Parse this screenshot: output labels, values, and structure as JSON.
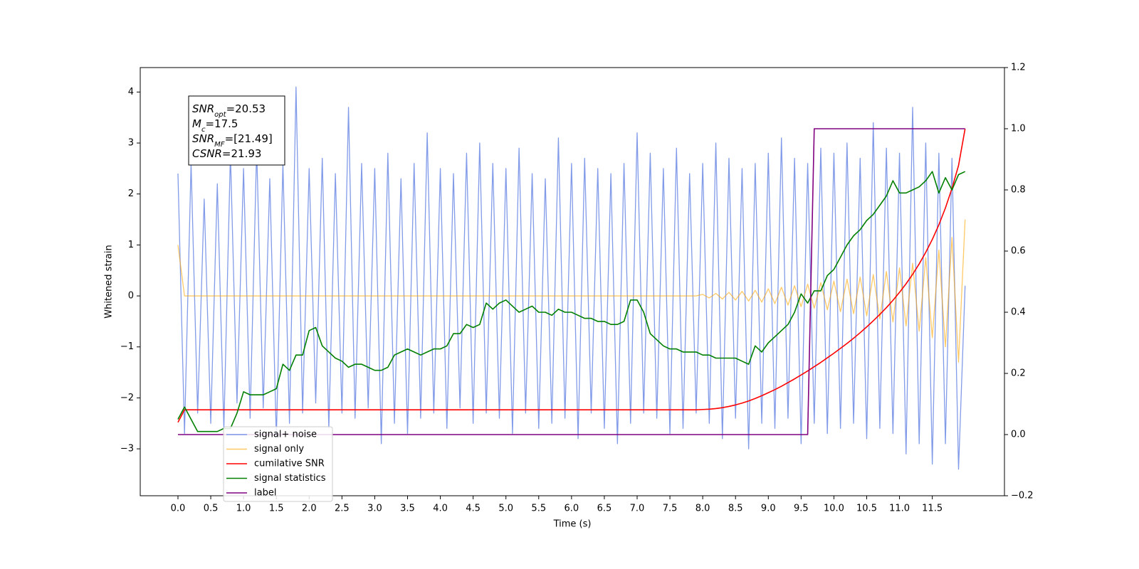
{
  "chart_data": {
    "type": "line",
    "x_label": "Time (s)",
    "y_label": "Whitened strain",
    "xlim": [
      -0.575,
      12.6
    ],
    "ylim": [
      -3.92,
      4.48
    ],
    "y2lim": [
      -0.2,
      1.2
    ],
    "xticks": [
      {
        "value": 0,
        "label": "0.0"
      },
      0.5,
      {
        "value": 1,
        "label": "1.0"
      },
      1.5,
      {
        "value": 2,
        "label": "2.0"
      },
      2.5,
      {
        "value": 3,
        "label": "3.0"
      },
      3.5,
      {
        "value": 4,
        "label": "4.0"
      },
      4.5,
      {
        "value": 5,
        "label": "5.0"
      },
      5.5,
      {
        "value": 6,
        "label": "6.0"
      },
      6.5,
      {
        "value": 7,
        "label": "7.0"
      },
      7.5,
      {
        "value": 8,
        "label": "8.0"
      },
      8.5,
      {
        "value": 9,
        "label": "9.0"
      },
      9.5,
      {
        "value": 10,
        "label": "10.0"
      },
      10.5,
      {
        "value": 11,
        "label": "11.0"
      },
      11.5
    ],
    "yticks": [
      {
        "value": -3,
        "label": "−3"
      },
      {
        "value": -2,
        "label": "−2"
      },
      {
        "value": -1,
        "label": "−1"
      },
      0,
      1,
      2,
      3,
      4
    ],
    "y2ticks": [
      {
        "value": -0.2,
        "label": "−0.2"
      },
      {
        "value": 0,
        "label": "0.0"
      },
      0.2,
      0.4,
      0.6,
      0.8,
      {
        "value": 1,
        "label": "1.0"
      },
      1.2
    ],
    "x": [
      0.0,
      0.1,
      0.2,
      0.3,
      0.4,
      0.5,
      0.6,
      0.7,
      0.8,
      0.9,
      1.0,
      1.1,
      1.2,
      1.3,
      1.4,
      1.5,
      1.6,
      1.7,
      1.8,
      1.9,
      2.0,
      2.1,
      2.2,
      2.3,
      2.4,
      2.5,
      2.6,
      2.7,
      2.8,
      2.9,
      3.0,
      3.1,
      3.2,
      3.3,
      3.4,
      3.5,
      3.6,
      3.7,
      3.8,
      3.9,
      4.0,
      4.1,
      4.2,
      4.3,
      4.4,
      4.5,
      4.6,
      4.7,
      4.8,
      4.9,
      5.0,
      5.1,
      5.2,
      5.3,
      5.4,
      5.5,
      5.6,
      5.7,
      5.8,
      5.9,
      6.0,
      6.1,
      6.2,
      6.3,
      6.4,
      6.5,
      6.6,
      6.7,
      6.8,
      6.9,
      7.0,
      7.1,
      7.2,
      7.3,
      7.4,
      7.5,
      7.6,
      7.7,
      7.8,
      7.9,
      8.0,
      8.1,
      8.2,
      8.3,
      8.4,
      8.5,
      8.6,
      8.7,
      8.8,
      8.9,
      9.0,
      9.1,
      9.2,
      9.3,
      9.4,
      9.5,
      9.6,
      9.7,
      9.8,
      9.9,
      10.0,
      10.1,
      10.2,
      10.3,
      10.4,
      10.5,
      10.6,
      10.7,
      10.8,
      10.9,
      11.0,
      11.1,
      11.2,
      11.3,
      11.4,
      11.5,
      11.6,
      11.7,
      11.8,
      11.9,
      12.0
    ],
    "series": [
      {
        "name": "signal+ noise",
        "color": "#7b96e8",
        "values": [
          2.4,
          -2.7,
          2.6,
          -2.3,
          1.9,
          -2.5,
          2.2,
          -2.6,
          2.8,
          -2.1,
          2.5,
          -2.4,
          2.9,
          -2.2,
          2.3,
          -2.8,
          2.6,
          -2.5,
          4.1,
          -2.3,
          2.5,
          -2.1,
          2.7,
          -2.6,
          2.4,
          -2.3,
          3.7,
          -2.4,
          2.6,
          -2.2,
          2.5,
          -2.9,
          2.8,
          -2.5,
          2.3,
          -2.7,
          2.6,
          -2.4,
          3.2,
          -2.3,
          2.5,
          -2.6,
          2.4,
          -2.2,
          2.8,
          -2.5,
          3.0,
          -2.3,
          2.6,
          -2.4,
          2.5,
          -2.7,
          2.9,
          -2.3,
          2.4,
          -2.6,
          2.3,
          -2.5,
          3.1,
          -2.4,
          2.6,
          -2.8,
          2.7,
          -2.3,
          2.5,
          -2.6,
          2.4,
          -2.9,
          2.6,
          -2.5,
          3.2,
          -2.3,
          2.8,
          -2.4,
          2.5,
          -2.7,
          2.9,
          -2.6,
          2.4,
          -2.3,
          2.6,
          -2.5,
          3.0,
          -2.8,
          2.7,
          -2.4,
          2.5,
          -3.0,
          2.6,
          -2.5,
          2.8,
          -2.6,
          3.1,
          -2.4,
          2.7,
          -2.9,
          2.6,
          -2.5,
          2.9,
          -2.7,
          2.8,
          -2.6,
          3.0,
          -2.5,
          2.7,
          -2.8,
          3.4,
          -2.6,
          2.9,
          -2.7,
          2.8,
          -3.1,
          3.7,
          -2.9,
          3.0,
          -3.3,
          2.8,
          -2.9,
          2.7,
          -3.4,
          0.2
        ]
      },
      {
        "name": "signal only",
        "color": "#ffa500",
        "values": [
          1.0,
          0,
          0,
          0,
          0,
          0,
          0,
          0,
          0,
          0,
          0,
          0,
          0,
          0,
          0,
          0,
          0,
          0,
          0,
          0,
          0,
          0,
          0,
          0,
          0,
          0,
          0,
          0,
          0,
          0,
          0,
          0,
          0,
          0,
          0,
          0,
          0,
          0,
          0,
          0,
          0,
          0,
          0,
          0,
          0,
          0,
          0,
          0,
          0,
          0,
          0,
          0,
          0,
          0,
          0,
          0,
          0,
          0,
          0,
          0,
          0,
          0,
          0,
          0,
          0,
          0,
          0,
          0,
          0,
          0,
          0,
          0,
          0,
          0,
          0,
          0,
          0,
          0,
          0,
          0,
          0.03,
          -0.04,
          0.05,
          -0.06,
          0.07,
          -0.08,
          0.09,
          -0.1,
          0.11,
          -0.12,
          0.14,
          -0.15,
          0.17,
          -0.18,
          0.2,
          -0.21,
          0.23,
          -0.24,
          0.26,
          -0.27,
          0.29,
          -0.31,
          0.33,
          -0.35,
          0.37,
          -0.39,
          0.42,
          -0.45,
          0.48,
          -0.51,
          0.55,
          -0.59,
          0.64,
          -0.69,
          0.75,
          -0.82,
          0.9,
          -1.0,
          1.15,
          -1.3,
          1.5
        ]
      },
      {
        "name": "cumilative SNR",
        "color": "#ff0000",
        "axis": "y2",
        "values": [
          0.04,
          0.081,
          0.081,
          0.081,
          0.081,
          0.081,
          0.081,
          0.081,
          0.081,
          0.081,
          0.081,
          0.081,
          0.081,
          0.081,
          0.081,
          0.081,
          0.081,
          0.081,
          0.081,
          0.081,
          0.081,
          0.081,
          0.081,
          0.081,
          0.081,
          0.081,
          0.081,
          0.081,
          0.081,
          0.081,
          0.081,
          0.081,
          0.081,
          0.081,
          0.081,
          0.081,
          0.081,
          0.081,
          0.081,
          0.081,
          0.081,
          0.081,
          0.081,
          0.081,
          0.081,
          0.081,
          0.081,
          0.081,
          0.081,
          0.081,
          0.081,
          0.081,
          0.081,
          0.081,
          0.081,
          0.081,
          0.081,
          0.081,
          0.081,
          0.081,
          0.081,
          0.081,
          0.081,
          0.081,
          0.081,
          0.081,
          0.081,
          0.081,
          0.081,
          0.081,
          0.081,
          0.081,
          0.081,
          0.081,
          0.081,
          0.081,
          0.081,
          0.081,
          0.081,
          0.081,
          0.082,
          0.083,
          0.085,
          0.088,
          0.092,
          0.097,
          0.103,
          0.11,
          0.118,
          0.127,
          0.137,
          0.147,
          0.158,
          0.17,
          0.182,
          0.195,
          0.208,
          0.222,
          0.236,
          0.251,
          0.266,
          0.282,
          0.298,
          0.315,
          0.333,
          0.352,
          0.372,
          0.393,
          0.415,
          0.439,
          0.465,
          0.493,
          0.524,
          0.558,
          0.596,
          0.638,
          0.686,
          0.741,
          0.805,
          0.88,
          1.0
        ]
      },
      {
        "name": "signal statistics",
        "color": "#008000",
        "axis": "y2",
        "values": [
          0.05,
          0.09,
          0.05,
          0.01,
          0.01,
          0.01,
          0.01,
          0.02,
          0.02,
          0.07,
          0.14,
          0.13,
          0.13,
          0.13,
          0.14,
          0.15,
          0.23,
          0.21,
          0.26,
          0.26,
          0.34,
          0.35,
          0.29,
          0.27,
          0.25,
          0.24,
          0.22,
          0.23,
          0.23,
          0.22,
          0.21,
          0.21,
          0.22,
          0.26,
          0.27,
          0.28,
          0.27,
          0.26,
          0.27,
          0.28,
          0.28,
          0.29,
          0.33,
          0.33,
          0.36,
          0.35,
          0.36,
          0.43,
          0.41,
          0.43,
          0.44,
          0.42,
          0.4,
          0.41,
          0.42,
          0.4,
          0.4,
          0.39,
          0.41,
          0.4,
          0.4,
          0.39,
          0.38,
          0.38,
          0.37,
          0.37,
          0.36,
          0.36,
          0.37,
          0.44,
          0.44,
          0.4,
          0.33,
          0.31,
          0.29,
          0.28,
          0.28,
          0.27,
          0.27,
          0.27,
          0.26,
          0.26,
          0.25,
          0.25,
          0.25,
          0.25,
          0.24,
          0.23,
          0.29,
          0.27,
          0.3,
          0.32,
          0.34,
          0.36,
          0.4,
          0.46,
          0.43,
          0.47,
          0.47,
          0.52,
          0.54,
          0.58,
          0.62,
          0.65,
          0.67,
          0.7,
          0.72,
          0.75,
          0.78,
          0.83,
          0.79,
          0.79,
          0.8,
          0.81,
          0.83,
          0.86,
          0.79,
          0.84,
          0.8,
          0.85,
          0.86
        ]
      },
      {
        "name": "label",
        "color": "#800080",
        "axis": "y2",
        "values": [
          0,
          0,
          0,
          0,
          0,
          0,
          0,
          0,
          0,
          0,
          0,
          0,
          0,
          0,
          0,
          0,
          0,
          0,
          0,
          0,
          0,
          0,
          0,
          0,
          0,
          0,
          0,
          0,
          0,
          0,
          0,
          0,
          0,
          0,
          0,
          0,
          0,
          0,
          0,
          0,
          0,
          0,
          0,
          0,
          0,
          0,
          0,
          0,
          0,
          0,
          0,
          0,
          0,
          0,
          0,
          0,
          0,
          0,
          0,
          0,
          0,
          0,
          0,
          0,
          0,
          0,
          0,
          0,
          0,
          0,
          0,
          0,
          0,
          0,
          0,
          0,
          0,
          0,
          0,
          0,
          0,
          0,
          0,
          0,
          0,
          0,
          0,
          0,
          0,
          0,
          0,
          0,
          0,
          0,
          0,
          0,
          0,
          1,
          1,
          1,
          1,
          1,
          1,
          1,
          1,
          1,
          1,
          1,
          1,
          1,
          1,
          1,
          1,
          1,
          1,
          1,
          1,
          1,
          1,
          1,
          1
        ]
      }
    ],
    "annotation": [
      {
        "main": "SNR",
        "sub": "opt",
        "rest": "=20.53"
      },
      {
        "main": "M",
        "sub": "c",
        "rest": "=17.5"
      },
      {
        "main": "SNR",
        "sub": "MF",
        "rest": "=[21.49]"
      },
      {
        "main": "CSNR",
        "rest": "=21.93"
      }
    ]
  }
}
